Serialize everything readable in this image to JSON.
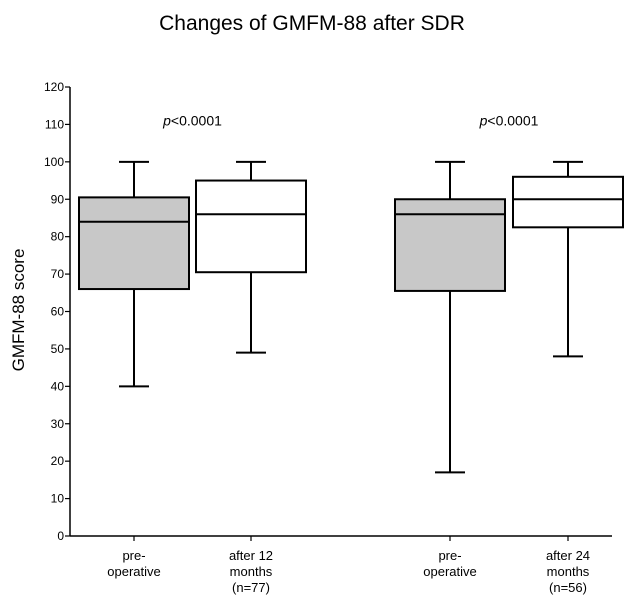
{
  "chart_data": {
    "type": "box",
    "title": "Changes of GMFM-88 after SDR",
    "ylabel": "GMFM-88 score",
    "xlabel": "",
    "ylim": [
      0,
      120
    ],
    "yticks": [
      0,
      10,
      20,
      30,
      40,
      50,
      60,
      70,
      80,
      90,
      100,
      110,
      120
    ],
    "grid": false,
    "fill_colors": {
      "pre": "#c8c8c8",
      "post": "#ffffff"
    },
    "groups": [
      {
        "annotation_prefix": "p",
        "annotation_suffix": "<0.0001",
        "boxes": [
          {
            "label_lines": [
              "pre-",
              "operative"
            ],
            "kind": "pre",
            "min": 40,
            "q1": 66,
            "median": 84,
            "q3": 90.5,
            "max": 100
          },
          {
            "label_lines": [
              "after 12",
              "months",
              "(n=77)"
            ],
            "kind": "post",
            "min": 49,
            "q1": 70.5,
            "median": 86,
            "q3": 95,
            "max": 100
          }
        ]
      },
      {
        "annotation_prefix": "p",
        "annotation_suffix": "<0.0001",
        "boxes": [
          {
            "label_lines": [
              "pre-",
              "operative"
            ],
            "kind": "pre",
            "min": 17,
            "q1": 65.5,
            "median": 86,
            "q3": 90,
            "max": 100
          },
          {
            "label_lines": [
              "after 24",
              "months",
              "(n=56)"
            ],
            "kind": "post",
            "min": 48,
            "q1": 82.5,
            "median": 90,
            "q3": 96,
            "max": 100
          }
        ]
      }
    ]
  }
}
